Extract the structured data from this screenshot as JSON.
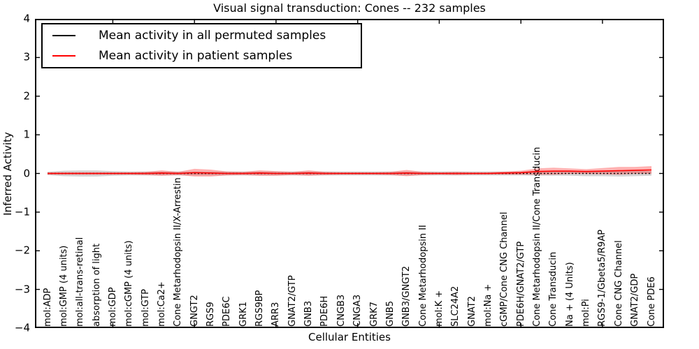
{
  "title": "Visual signal transduction: Cones -- 232 samples",
  "legend": {
    "items": [
      {
        "label": "Mean activity in all permuted samples",
        "color": "#000000"
      },
      {
        "label": "Mean activity in patient samples",
        "color": "#ff0000"
      }
    ]
  },
  "chart_data": {
    "type": "line",
    "title": "Visual signal transduction: Cones -- 232 samples",
    "xlabel": "Cellular Entities",
    "ylabel": "Inferred Activity",
    "ylim": [
      -4,
      4
    ],
    "yticks": [
      -4,
      -3,
      -2,
      -1,
      0,
      1,
      2,
      3,
      4
    ],
    "x_major_tick_indices": [
      4,
      9,
      14,
      19,
      24,
      29,
      34
    ],
    "grid": false,
    "legend_position": "upper-left",
    "categories": [
      "mol:ADP",
      "mol:GMP (4 units)",
      "mol:all-trans-retinal",
      "absorption of light",
      "mol:GDP",
      "mol:cGMP (4 units)",
      "mol:GTP",
      "mol:Ca2+",
      "Cone Metarhodopsin II/X-Arrestin",
      "GNGT2",
      "RGS9",
      "PDE6C",
      "GRK1",
      "RGS9BP",
      "ARR3",
      "GNAT2/GTP",
      "GNB3",
      "PDE6H",
      "CNGB3",
      "CNGA3",
      "GRK7",
      "GNB5",
      "GNB3/GNGT2",
      "Cone Metarhodopsin II",
      "mol:K +",
      "SLC24A2",
      "GNAT2",
      "mol:Na +",
      "cGMP/Cone CNG Channel",
      "PDE6H/GNAT2/GTP",
      "Cone Metarhodopsin II/Cone Transducin",
      "Cone Transducin",
      "Na + (4 Units)",
      "mol:Pi",
      "RGS9-1/Gbeta5/R9AP",
      "Cone CNG Channel",
      "GNAT2/GDP",
      "Cone PDE6"
    ],
    "series": [
      {
        "name": "Mean activity in all permuted samples",
        "color": "#000000",
        "line_style": "dotted",
        "values": [
          0,
          0,
          0,
          0,
          0,
          0,
          0,
          0,
          0,
          0,
          0,
          0,
          0,
          0,
          0,
          0,
          0,
          0,
          0,
          0,
          0,
          0,
          0,
          0,
          0,
          0,
          0,
          0,
          0,
          0,
          0,
          0,
          0,
          0,
          0,
          0,
          0,
          0
        ],
        "band_halfwidth": [
          0.04,
          0.07,
          0.08,
          0.08,
          0.06,
          0.05,
          0.05,
          0.05,
          0.05,
          0.05,
          0.05,
          0.05,
          0.05,
          0.05,
          0.05,
          0.05,
          0.05,
          0.05,
          0.05,
          0.05,
          0.05,
          0.05,
          0.05,
          0.05,
          0.05,
          0.05,
          0.05,
          0.05,
          0.05,
          0.05,
          0.06,
          0.06,
          0.06,
          0.07,
          0.07,
          0.08,
          0.07,
          0.06
        ],
        "band_color": "#888888",
        "band_opacity": 0.35
      },
      {
        "name": "Mean activity in patient samples",
        "color": "#ff0000",
        "line_style": "solid",
        "values": [
          0,
          0,
          0,
          0,
          0,
          0,
          0,
          0.01,
          0,
          0.02,
          0.01,
          0,
          0,
          0.01,
          0,
          0,
          0.01,
          0,
          0,
          0,
          0,
          0,
          0.01,
          0,
          0,
          0,
          0,
          0,
          0.01,
          0.02,
          0.05,
          0.06,
          0.06,
          0.05,
          0.06,
          0.07,
          0.08,
          0.09
        ],
        "band_halfwidth": [
          0.03,
          0.03,
          0.03,
          0.03,
          0.03,
          0.03,
          0.04,
          0.07,
          0.04,
          0.1,
          0.09,
          0.05,
          0.04,
          0.07,
          0.06,
          0.04,
          0.07,
          0.04,
          0.03,
          0.03,
          0.03,
          0.04,
          0.08,
          0.04,
          0.03,
          0.04,
          0.03,
          0.03,
          0.04,
          0.05,
          0.08,
          0.09,
          0.07,
          0.06,
          0.08,
          0.1,
          0.09,
          0.1
        ],
        "band_color": "#ff0000",
        "band_opacity": 0.3
      }
    ]
  }
}
